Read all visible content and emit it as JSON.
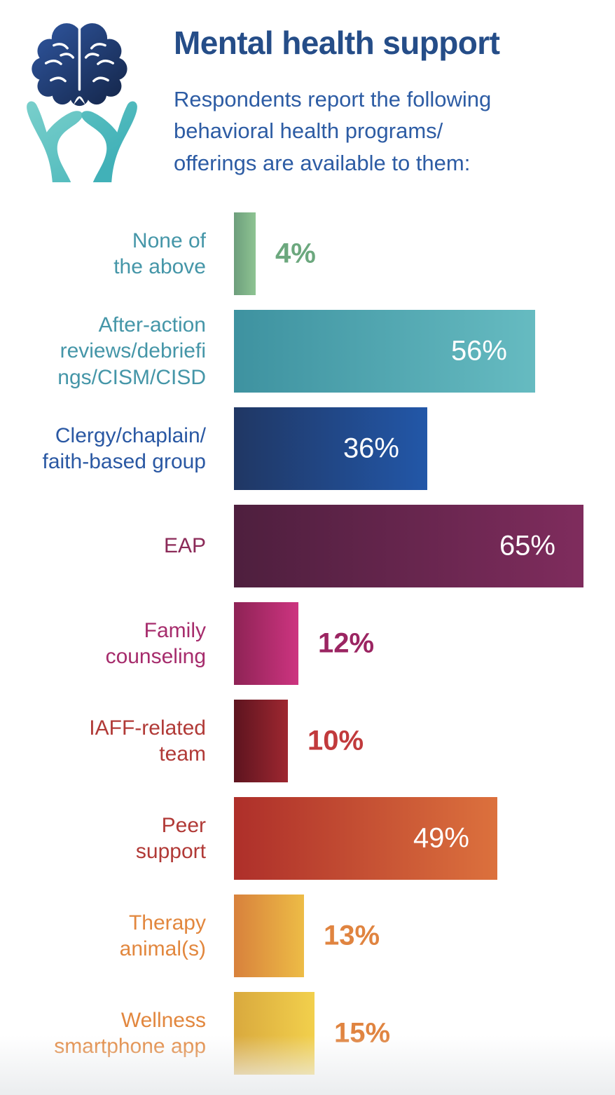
{
  "header": {
    "title": "Mental health support",
    "subtitle": "Respondents report the following\nbehavioral health programs/\nofferings are available to them:",
    "title_color": "#254d88",
    "subtitle_color": "#2d5ca4"
  },
  "icon": {
    "name": "brain-in-hands-icon",
    "brain_color_top": "#2e549c",
    "brain_color_bottom": "#16294f",
    "hands_color": "#5bc0c1"
  },
  "chart_data": {
    "type": "bar",
    "orientation": "horizontal",
    "unit": "%",
    "xlim": [
      0,
      65
    ],
    "grid": false,
    "legend": false,
    "title": "Mental health support",
    "categories": [
      "None of the above",
      "After-action reviews/debriefings/CISM/CISD",
      "Clergy/chaplain/faith-based group",
      "EAP",
      "Family counseling",
      "IAFF-related team",
      "Peer support",
      "Therapy animal(s)",
      "Wellness smartphone app"
    ],
    "values": [
      4,
      56,
      36,
      65,
      12,
      10,
      49,
      13,
      15
    ],
    "rows": [
      {
        "label": "None of\nthe above",
        "value": 4,
        "value_label": "4%",
        "label_color": "#4596a8",
        "value_inside": false,
        "value_color": "#6ca87e",
        "bar_from": "#6d9e7c",
        "bar_to": "#8ec492"
      },
      {
        "label": "After-action\nreviews/debriefi\nngs/CISM/CISD",
        "value": 56,
        "value_label": "56%",
        "label_color": "#4596a8",
        "value_inside": true,
        "value_color": "#ffffff",
        "bar_from": "#3e92a0",
        "bar_to": "#66bbc1"
      },
      {
        "label": "Clergy/chaplain/\nfaith-based group",
        "value": 36,
        "value_label": "36%",
        "label_color": "#2a58a3",
        "value_inside": true,
        "value_color": "#ffffff",
        "bar_from": "#203764",
        "bar_to": "#2257a8"
      },
      {
        "label": "EAP",
        "value": 65,
        "value_label": "65%",
        "label_color": "#8b2a58",
        "value_inside": true,
        "value_color": "#ffffff",
        "bar_from": "#4e1f3e",
        "bar_to": "#7f2c5d"
      },
      {
        "label": "Family\ncounseling",
        "value": 12,
        "value_label": "12%",
        "label_color": "#a62c6c",
        "value_inside": false,
        "value_color": "#9b2562",
        "bar_from": "#8e2355",
        "bar_to": "#cd3480"
      },
      {
        "label": "IAFF-related\nteam",
        "value": 10,
        "value_label": "10%",
        "label_color": "#b13a37",
        "value_inside": false,
        "value_color": "#c13a3c",
        "bar_from": "#5d141f",
        "bar_to": "#9e2730"
      },
      {
        "label": "Peer\nsupport",
        "value": 49,
        "value_label": "49%",
        "label_color": "#b13a37",
        "value_inside": true,
        "value_color": "#ffffff",
        "bar_from": "#ae2f2a",
        "bar_to": "#dc713d"
      },
      {
        "label": "Therapy\nanimal(s)",
        "value": 13,
        "value_label": "13%",
        "label_color": "#e2873e",
        "value_inside": false,
        "value_color": "#e08440",
        "bar_from": "#d8813c",
        "bar_to": "#edbc46"
      },
      {
        "label": "Wellness\nsmartphone app",
        "value": 15,
        "value_label": "15%",
        "label_color": "#e2873e",
        "value_inside": false,
        "value_color": "#e08440",
        "bar_from": "#d9a93e",
        "bar_to": "#f2d04c"
      }
    ]
  }
}
